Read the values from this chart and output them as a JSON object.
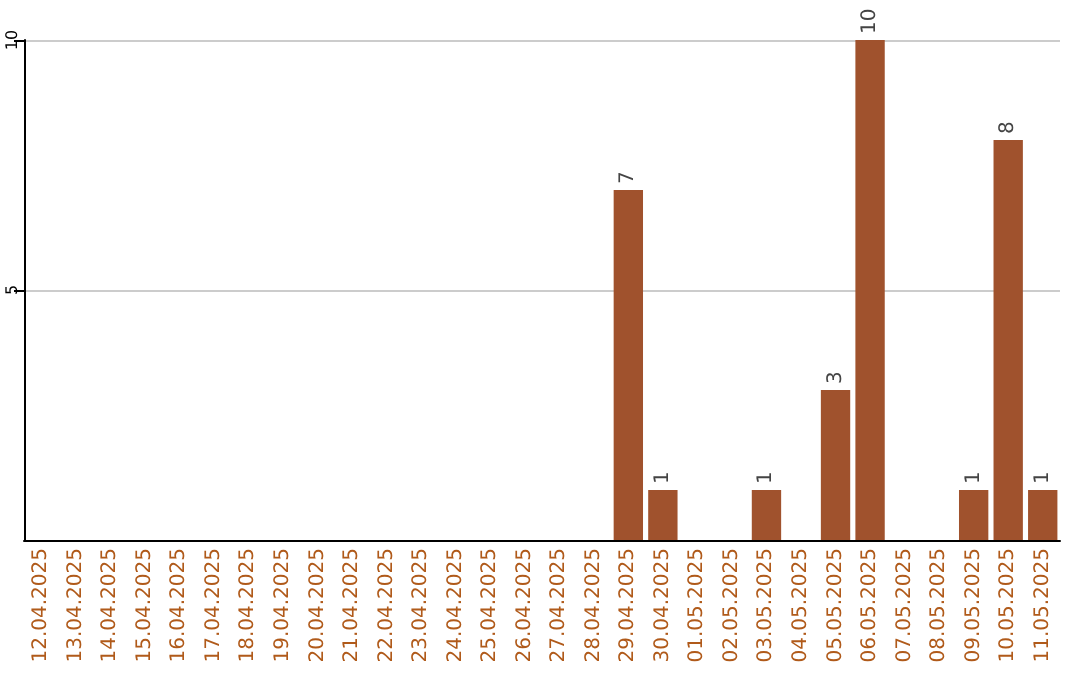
{
  "chart_data": {
    "type": "bar",
    "categories": [
      "12.04.2025",
      "13.04.2025",
      "14.04.2025",
      "15.04.2025",
      "16.04.2025",
      "17.04.2025",
      "18.04.2025",
      "19.04.2025",
      "20.04.2025",
      "21.04.2025",
      "22.04.2025",
      "23.04.2025",
      "24.04.2025",
      "25.04.2025",
      "26.04.2025",
      "27.04.2025",
      "28.04.2025",
      "29.04.2025",
      "30.04.2025",
      "01.05.2025",
      "02.05.2025",
      "03.05.2025",
      "04.05.2025",
      "05.05.2025",
      "06.05.2025",
      "07.05.2025",
      "08.05.2025",
      "09.05.2025",
      "10.05.2025",
      "11.05.2025"
    ],
    "values": [
      0,
      0,
      0,
      0,
      0,
      0,
      0,
      0,
      0,
      0,
      0,
      0,
      0,
      0,
      0,
      0,
      0,
      7,
      1,
      0,
      0,
      1,
      0,
      3,
      10,
      0,
      0,
      1,
      8,
      1
    ],
    "value_labels": [
      null,
      null,
      null,
      null,
      null,
      null,
      null,
      null,
      null,
      null,
      null,
      null,
      null,
      null,
      null,
      null,
      null,
      "7",
      "1",
      null,
      null,
      "1",
      null,
      "3",
      "10",
      null,
      null,
      "1",
      "8",
      "1"
    ],
    "color": "#a0522d",
    "ylim": [
      0,
      10
    ],
    "yticks": [
      5,
      10
    ],
    "grid": "y"
  }
}
